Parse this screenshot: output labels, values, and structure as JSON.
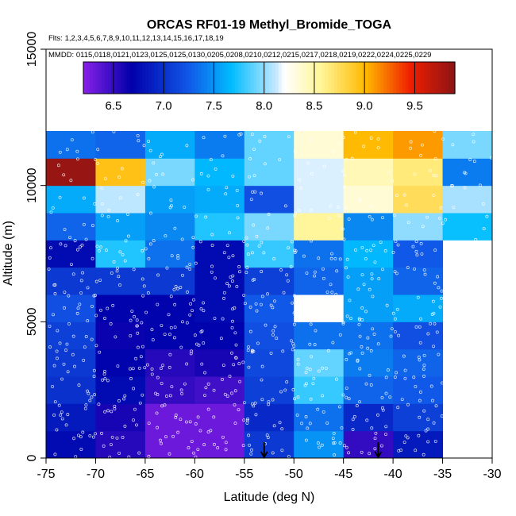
{
  "chart_data": {
    "type": "heatmap",
    "title": "ORCAS RF01-19 Methyl_Bromide_TOGA",
    "flights_text": "Flts: 1,2,3,4,5,6,7,8,9,10,11,12,13,14,15,16,17,18,19",
    "dates_text": "MMDD: 0115,0118,0121,0123,0125,0125,0130,0205,0208,0210,0212,0215,0217,0218,0219,0222,0224,0225,0229",
    "xlabel": "Latitude (deg N)",
    "ylabel": "Altitude (m)",
    "xlim": [
      -75,
      -30
    ],
    "ylim": [
      0,
      15000
    ],
    "x_ticks": [
      -75,
      -70,
      -65,
      -60,
      -55,
      -50,
      -45,
      -40,
      -35,
      -30
    ],
    "y_ticks": [
      0,
      5000,
      10000,
      15000
    ],
    "colorbar": {
      "min": 6.2,
      "max": 9.9,
      "ticks": [
        6.5,
        7.0,
        7.5,
        8.0,
        8.5,
        9.0,
        9.5
      ]
    },
    "x_bins": [
      -75,
      -70,
      -65,
      -60,
      -55,
      -50,
      -45,
      -40,
      -35,
      -30
    ],
    "y_bin_size": 1000,
    "grid": [
      [
        6.75,
        6.55,
        6.3,
        6.3,
        7.05,
        7.5,
        6.5,
        6.85,
        null
      ],
      [
        6.85,
        6.6,
        6.3,
        6.3,
        6.95,
        7.35,
        6.95,
        7.1,
        null
      ],
      [
        7.0,
        6.75,
        6.5,
        6.45,
        7.1,
        7.8,
        7.3,
        7.25,
        null
      ],
      [
        7.05,
        6.7,
        6.55,
        6.6,
        7.15,
        7.9,
        7.4,
        7.3,
        null
      ],
      [
        7.1,
        6.65,
        6.7,
        6.7,
        7.2,
        7.35,
        7.35,
        7.2,
        null
      ],
      [
        7.2,
        6.7,
        6.7,
        6.75,
        7.25,
        8.2,
        7.55,
        7.6,
        null
      ],
      [
        7.05,
        7.05,
        7.05,
        6.75,
        7.1,
        7.3,
        7.55,
        7.3,
        null
      ],
      [
        6.75,
        7.75,
        7.35,
        6.75,
        7.8,
        7.35,
        7.65,
        7.25,
        null
      ],
      [
        7.3,
        7.55,
        7.45,
        7.75,
        7.95,
        8.55,
        7.45,
        8.0,
        7.7
      ],
      [
        7.6,
        8.1,
        7.55,
        7.6,
        7.2,
        8.15,
        8.35,
        8.75,
        8.05
      ],
      [
        9.85,
        8.95,
        7.95,
        7.65,
        7.9,
        8.15,
        8.45,
        8.65,
        7.4
      ],
      [
        7.35,
        7.3,
        7.6,
        7.4,
        7.9,
        8.35,
        9.0,
        9.1,
        7.95
      ]
    ],
    "annotations": [
      {
        "label": "down-arrow",
        "x": -53,
        "y": 0
      },
      {
        "label": "down-arrow",
        "x": -41.5,
        "y": 0
      }
    ]
  }
}
